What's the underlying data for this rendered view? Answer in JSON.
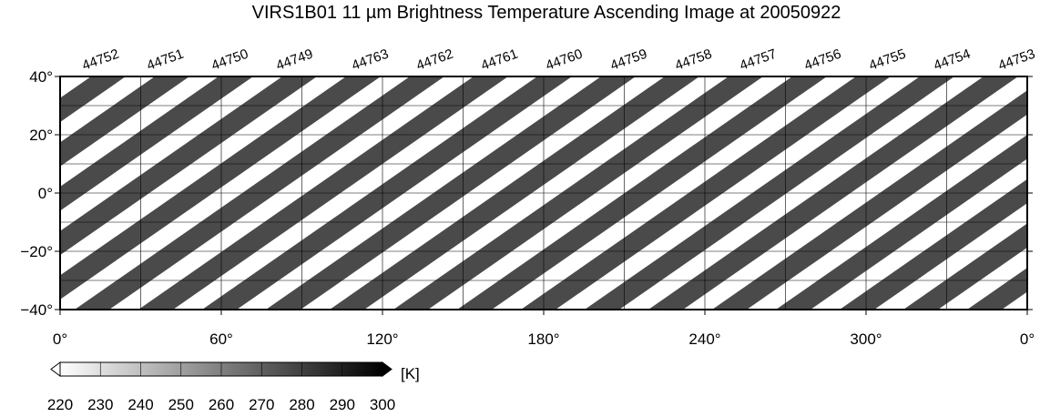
{
  "title": "VIRS1B01 11 µm Brightness Temperature Ascending Image at 20050922",
  "orbits": [
    "44752",
    "44751",
    "44750",
    "44749",
    "44763",
    "44762",
    "44761",
    "44760",
    "44759",
    "44758",
    "44757",
    "44756",
    "44755",
    "44754",
    "44753"
  ],
  "lat_ticks": [
    {
      "value": 40,
      "label": "40°"
    },
    {
      "value": 20,
      "label": "20°"
    },
    {
      "value": 0,
      "label": "0°"
    },
    {
      "value": -20,
      "label": "−20°"
    },
    {
      "value": -40,
      "label": "−40°"
    }
  ],
  "lon_ticks": [
    {
      "value": 0,
      "label": "0°"
    },
    {
      "value": 60,
      "label": "60°"
    },
    {
      "value": 120,
      "label": "120°"
    },
    {
      "value": 180,
      "label": "180°"
    },
    {
      "value": 240,
      "label": "240°"
    },
    {
      "value": 300,
      "label": "300°"
    },
    {
      "value": 360,
      "label": "0°"
    }
  ],
  "colorbar": {
    "ticks": [
      220,
      230,
      240,
      250,
      260,
      270,
      280,
      290,
      300
    ],
    "unit": "[K]"
  }
}
